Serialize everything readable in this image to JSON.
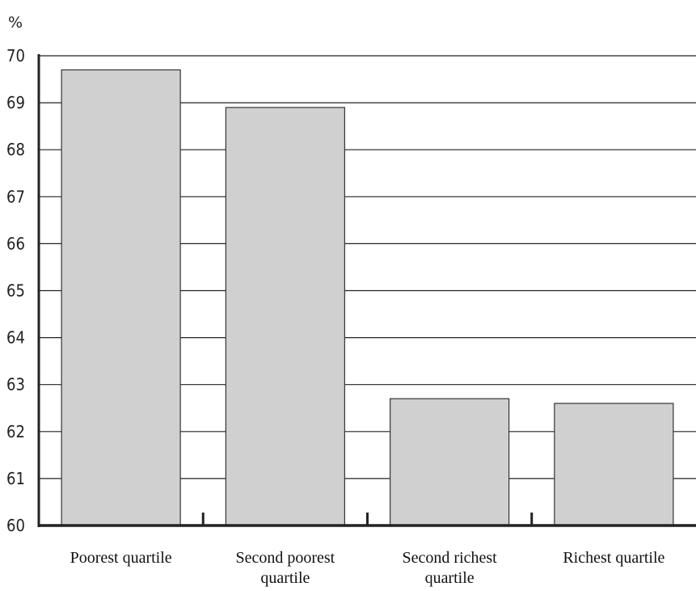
{
  "chart_data": {
    "type": "bar",
    "ylabel": "%",
    "ylim": [
      60,
      70
    ],
    "yticks": [
      60,
      61,
      62,
      63,
      64,
      65,
      66,
      67,
      68,
      69,
      70
    ],
    "grid": true,
    "categories": [
      [
        "Poorest quartile"
      ],
      [
        "Second poorest",
        "quartile"
      ],
      [
        "Second richest",
        "quartile"
      ],
      [
        "Richest quartile"
      ]
    ],
    "values": [
      69.7,
      68.9,
      62.7,
      62.6
    ],
    "colors": {
      "bar_fill": "#d0d0d0",
      "bar_stroke": "#333333",
      "grid": "#222222",
      "axis": "#222222"
    }
  }
}
